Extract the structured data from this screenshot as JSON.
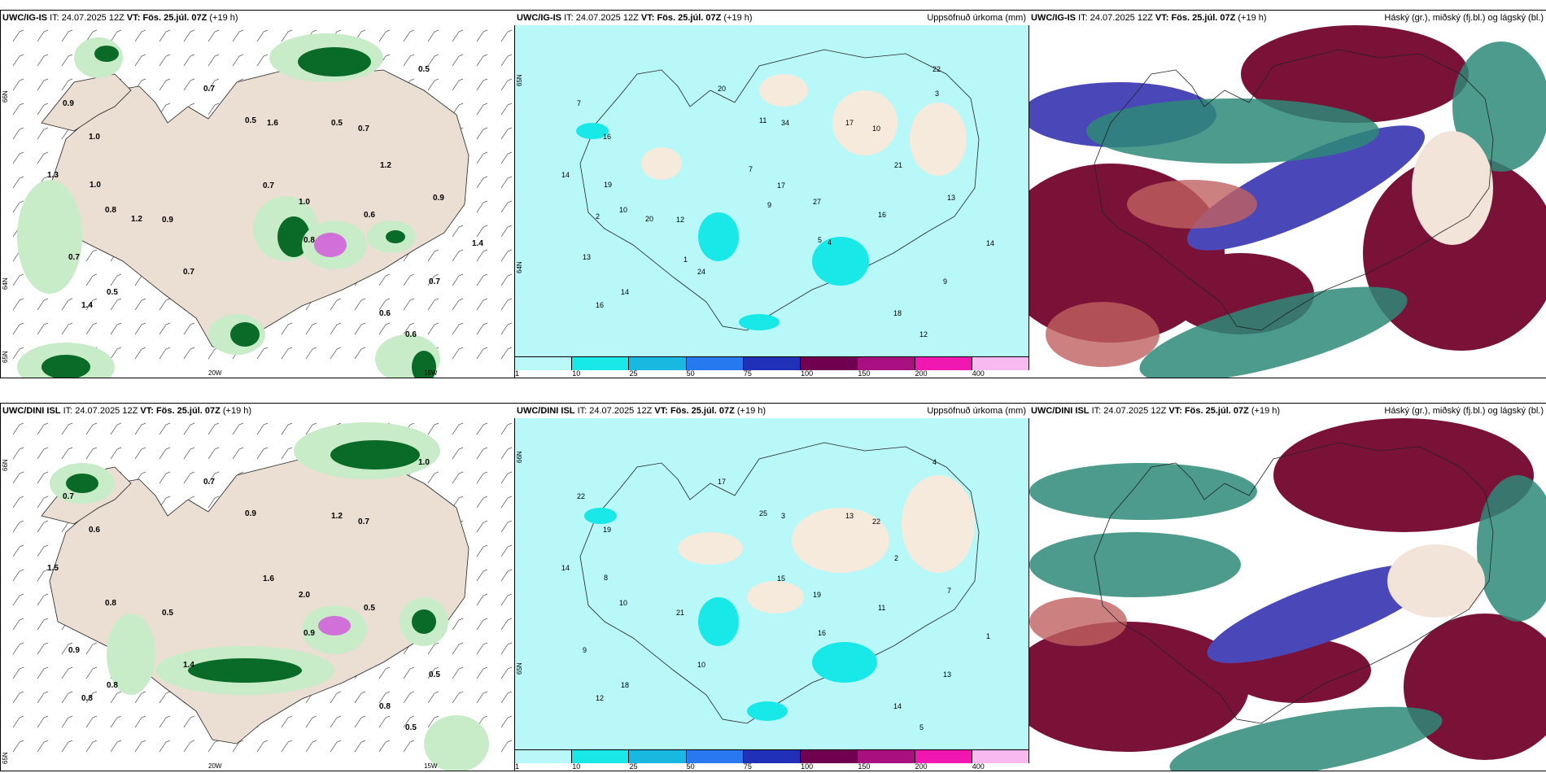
{
  "panels": [
    {
      "model": "UWC/IG-IS",
      "it_label": "IT:",
      "it": "24.07.2025 12Z",
      "vt_label": "VT:",
      "vt": "Fös. 25.júl. 07Z",
      "lead": "(+19 h)",
      "right_title": "",
      "axis": {
        "lat1": "66N",
        "lat2": "64N",
        "lat3": "65N",
        "lon1": "20W",
        "lon2": "15W"
      }
    },
    {
      "model": "UWC/IG-IS",
      "it_label": "IT:",
      "it": "24.07.2025 12Z",
      "vt_label": "VT:",
      "vt": "Fös. 25.júl. 07Z",
      "lead": "(+19 h)",
      "right_title": "Uppsöfnuð úrkoma (mm)",
      "axis": {
        "lat1": "65N",
        "lat2": "64N"
      }
    },
    {
      "model": "UWC/IG-IS",
      "it_label": "IT:",
      "it": "24.07.2025 12Z",
      "vt_label": "VT:",
      "vt": "Fös. 25.júl. 07Z",
      "lead": "(+19 h)",
      "right_title": "Háský (gr.), miðský (fj.bl.) og lágský (bl.)"
    },
    {
      "model": "UWC/DINI ISL",
      "it_label": "IT:",
      "it": "24.07.2025 12Z",
      "vt_label": "VT:",
      "vt": "Fös. 25.júl. 07Z",
      "lead": "(+19 h)",
      "right_title": "",
      "axis": {
        "lat1": "66N",
        "lat2": "65N",
        "lon1": "20W",
        "lon2": "15W"
      }
    },
    {
      "model": "UWC/DINI ISL",
      "it_label": "IT:",
      "it": "24.07.2025 12Z",
      "vt_label": "VT:",
      "vt": "Fös. 25.júl. 07Z",
      "lead": "(+19 h)",
      "right_title": "Uppsöfnuð úrkoma (mm)",
      "axis": {
        "lat1": "66N",
        "lat2": "65N"
      }
    },
    {
      "model": "UWC/DINI ISL",
      "it_label": "IT:",
      "it": "24.07.2025 12Z",
      "vt_label": "VT:",
      "vt": "Fös. 25.júl. 07Z",
      "lead": "(+19 h)",
      "right_title": "Háský (gr.), miðský (fj.bl.) og lágský (bl.)"
    }
  ],
  "precip_legend": {
    "ticks": [
      "1",
      "10",
      "25",
      "50",
      "75",
      "100",
      "150",
      "200",
      "400"
    ],
    "colors": [
      "#b8f8f8",
      "#18e8e8",
      "#18b8e0",
      "#2878f0",
      "#2030b8",
      "#700050",
      "#a81080",
      "#f018b0",
      "#f8b8f0"
    ]
  },
  "map_values": {
    "p1": [
      "0.6",
      "0.8",
      "0.8",
      "0.9",
      "0.7",
      "1.0",
      "0.5",
      "0.9",
      "0.7",
      "0.5",
      "0.5",
      "0.6",
      "0.7",
      "0.7",
      "1.0",
      "0.7",
      "0.6",
      "0.7",
      "1.3",
      "1.4",
      "0.5",
      "1.6",
      "1.2",
      "1.4",
      "0.9",
      "1.0",
      "1.2"
    ],
    "p2": [
      "12",
      "10",
      "5",
      "7",
      "9",
      "16",
      "14",
      "12",
      "10",
      "11",
      "17",
      "18",
      "24",
      "20",
      "27",
      "13",
      "16",
      "17",
      "14",
      "16",
      "22",
      "34",
      "21",
      "14",
      "13",
      "19",
      "20",
      "9",
      "7",
      "3",
      "4",
      "2",
      "1"
    ],
    "p4": [
      "0.5",
      "0.8",
      "0.9",
      "0.7",
      "0.5",
      "0.6",
      "0.8",
      "0.5",
      "0.7",
      "0.9",
      "1.2",
      "0.8",
      "1.4",
      "0.7",
      "2.0",
      "0.9",
      "0.5",
      "1.6",
      "1.5",
      "0.8",
      "1.0"
    ],
    "p5": [
      "5",
      "10",
      "16",
      "22",
      "13",
      "19",
      "18",
      "21",
      "22",
      "25",
      "13",
      "14",
      "10",
      "17",
      "19",
      "9",
      "11",
      "15",
      "14",
      "12",
      "4",
      "3",
      "2",
      "1",
      "7",
      "8"
    ]
  },
  "colors": {
    "land": "#eadfd2",
    "ocean_p2": "#b8f8f8",
    "green_light": "#c8ecc8",
    "green_dark": "#0a6a28",
    "magenta": "#d070d8",
    "maroon": "#7a1238",
    "blue_cloud": "#4a48b8",
    "teal_cloud": "#2e8a78",
    "salmon": "#c06060"
  }
}
